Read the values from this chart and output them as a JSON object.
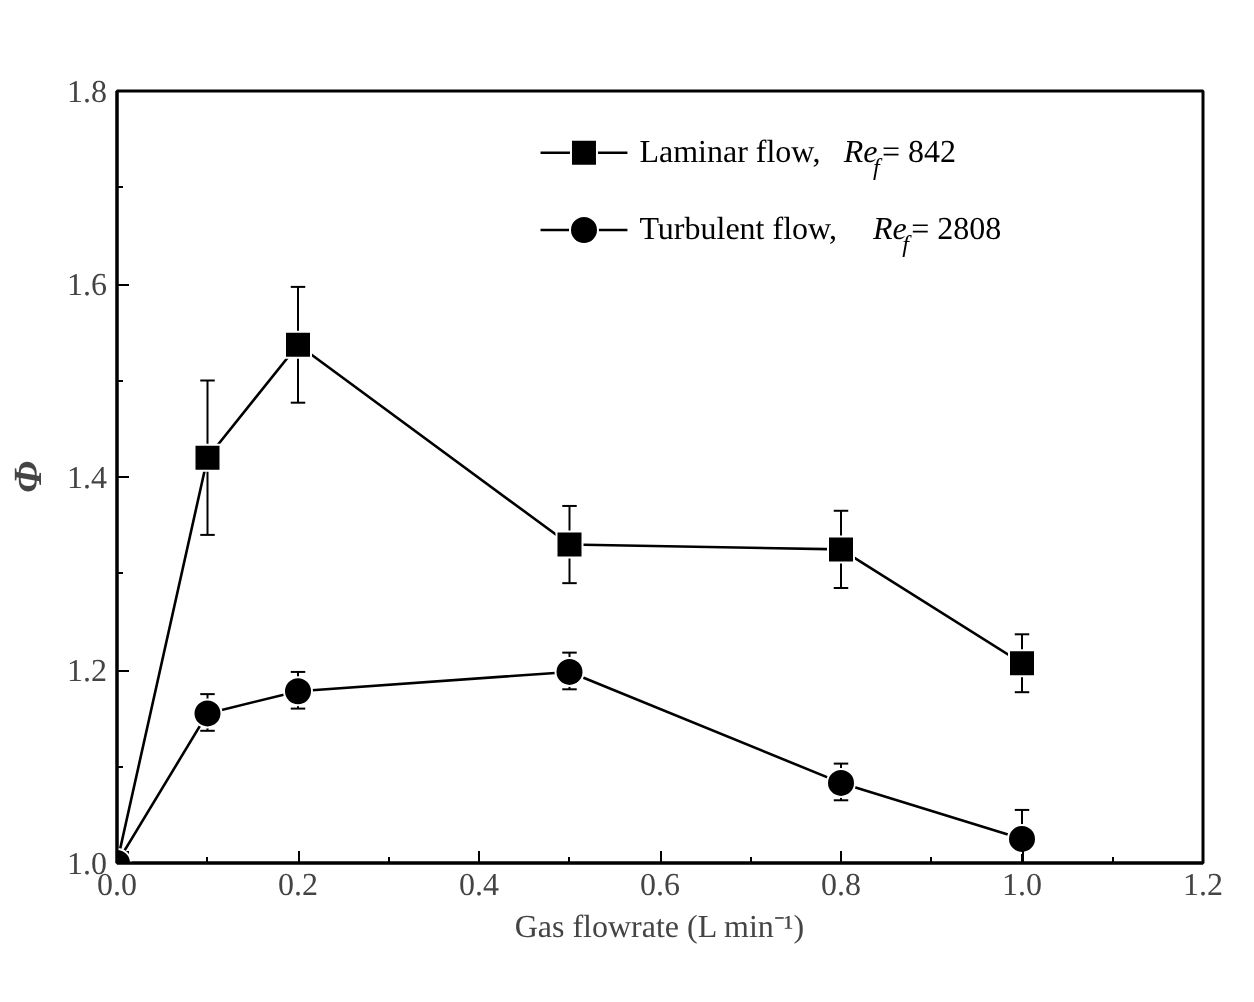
{
  "chart_data": {
    "type": "line",
    "xlabel": "Gas flowrate (L min⁻¹)",
    "ylabel": "Φ",
    "x": [
      0,
      0.1,
      0.2,
      0.5,
      0.8,
      1.0
    ],
    "series": [
      {
        "name": "Laminar flow, Re$_{f}$= 842",
        "color": "#000000",
        "marker": "square",
        "values": [
          1.0,
          1.42,
          1.537,
          1.33,
          1.325,
          1.207
        ],
        "errors": [
          null,
          [
            1.34,
            1.5
          ],
          [
            1.477,
            1.597
          ],
          [
            1.29,
            1.37
          ],
          [
            1.285,
            1.365
          ],
          [
            1.177,
            1.237
          ]
        ]
      },
      {
        "name": "Turbulent flow, Re$_{f}$= 2808",
        "color": "#000000",
        "marker": "circle",
        "values": [
          1.0,
          1.155,
          1.178,
          1.198,
          1.083,
          1.025
        ],
        "errors": [
          null,
          [
            1.137,
            1.175
          ],
          [
            1.16,
            1.198
          ],
          [
            1.18,
            1.218
          ],
          [
            1.065,
            1.103
          ],
          [
            1.0,
            1.055
          ]
        ]
      }
    ],
    "xlim": [
      0,
      1.2
    ],
    "xticks": [
      {
        "value": 0,
        "label": "0.0"
      },
      0.2,
      0.4,
      0.6,
      0.8,
      {
        "value": 1.0,
        "label": "1.0"
      },
      1.2
    ],
    "ylim": [
      1.0,
      1.8
    ],
    "yticks": [
      {
        "value": 1.0,
        "label": "1.0"
      },
      1.2,
      1.4,
      1.6,
      1.8
    ],
    "grid": false,
    "legend": "top right",
    "line_style": "solid"
  }
}
